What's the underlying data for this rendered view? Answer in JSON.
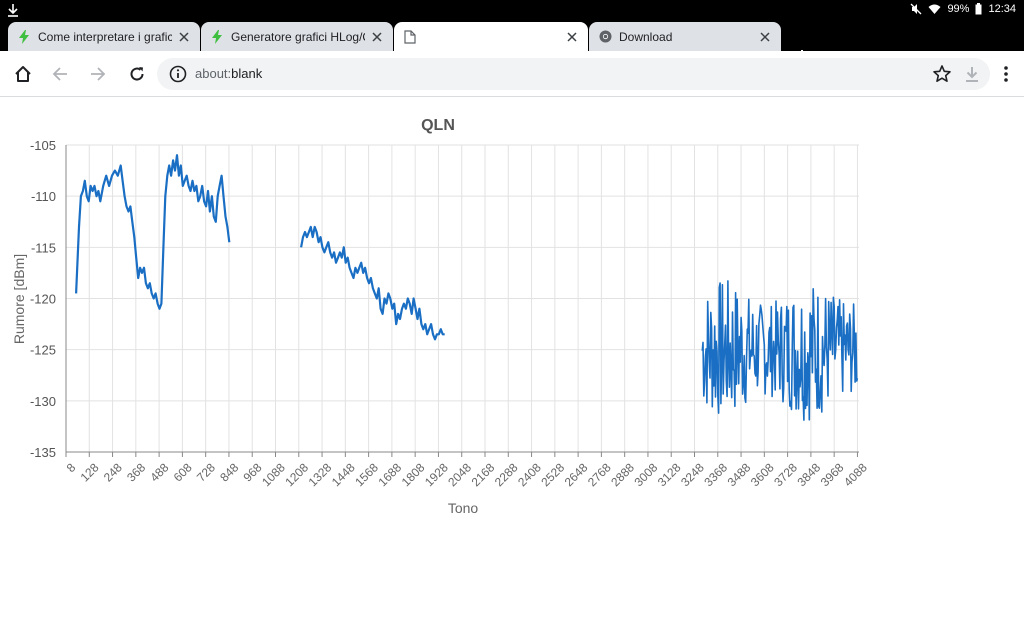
{
  "status_bar": {
    "battery": "99%",
    "time": "12:34"
  },
  "tabs": [
    {
      "title": "Come interpretare i grafici HLog/QLN",
      "favicon": "bolt-icon"
    },
    {
      "title": "Generatore grafici HLog/QLN",
      "favicon": "bolt-icon"
    },
    {
      "title": "",
      "favicon": "page-icon"
    },
    {
      "title": "Download",
      "favicon": "chrome-icon"
    }
  ],
  "toolbar": {
    "url_scheme": "about:",
    "url_path": "blank"
  },
  "colors": {
    "series": "#1a6fc4",
    "grid": "#e2e2e2",
    "tab_bg": "#dee1e6",
    "omnibox_bg": "#f1f3f4"
  },
  "chart_data": {
    "type": "line",
    "title": "QLN",
    "xlabel": "Tono",
    "ylabel": "Rumore [dBm]",
    "xlim": [
      8,
      4096
    ],
    "ylim": [
      -135,
      -105
    ],
    "x_ticks": [
      8,
      128,
      248,
      368,
      488,
      608,
      728,
      848,
      968,
      1088,
      1208,
      1328,
      1448,
      1568,
      1688,
      1808,
      1928,
      2048,
      2168,
      2288,
      2408,
      2528,
      2648,
      2768,
      2888,
      3008,
      3128,
      3248,
      3368,
      3488,
      3608,
      3728,
      3848,
      3968,
      4088
    ],
    "y_ticks": [
      -105,
      -110,
      -115,
      -120,
      -125,
      -130,
      -135
    ],
    "grid": true,
    "segments": [
      {
        "x": [
          60,
          75,
          85,
          95,
          105,
          115,
          125,
          135,
          145,
          155,
          165,
          175,
          185,
          200,
          215,
          230,
          245,
          260,
          275,
          290,
          300,
          310,
          320,
          330,
          340,
          350,
          360,
          370,
          380,
          390,
          400,
          410,
          420,
          430,
          440,
          450,
          460,
          470,
          480,
          490,
          500,
          510,
          520,
          530,
          540,
          550,
          560,
          570,
          580,
          590,
          600,
          610,
          620,
          630,
          640,
          650,
          660,
          670,
          680,
          690,
          700,
          710,
          720,
          730,
          740,
          750,
          760,
          770,
          780,
          790,
          800,
          810,
          820,
          830,
          840,
          850
        ],
        "y": [
          -119.5,
          -113,
          -110,
          -109.5,
          -108.5,
          -110,
          -110.5,
          -109,
          -109.5,
          -109,
          -110,
          -109.5,
          -110.5,
          -109,
          -108,
          -109,
          -108,
          -107.5,
          -108,
          -107,
          -108.5,
          -110,
          -111,
          -111.5,
          -111,
          -112.5,
          -114,
          -116,
          -118,
          -117,
          -117.5,
          -117,
          -118.5,
          -119,
          -118.5,
          -119.5,
          -120,
          -119.5,
          -120.5,
          -121,
          -120.5,
          -115,
          -110,
          -108,
          -107,
          -108,
          -106.5,
          -107.5,
          -106,
          -108,
          -107,
          -109,
          -108.5,
          -108,
          -109,
          -109.5,
          -108.5,
          -109.5,
          -109,
          -110.5,
          -110,
          -109,
          -110.5,
          -111,
          -109.5,
          -111.5,
          -110,
          -112,
          -112.5,
          -110,
          -109,
          -108,
          -110,
          -112,
          -113,
          -114.5
        ]
      },
      {
        "x": [
          1220,
          1230,
          1240,
          1250,
          1260,
          1270,
          1280,
          1290,
          1300,
          1310,
          1320,
          1330,
          1340,
          1350,
          1360,
          1370,
          1380,
          1390,
          1400,
          1410,
          1420,
          1430,
          1440,
          1450,
          1460,
          1470,
          1480,
          1490,
          1500,
          1510,
          1520,
          1530,
          1540,
          1550,
          1560,
          1570,
          1580,
          1590,
          1600,
          1610,
          1620,
          1630,
          1640,
          1650,
          1660,
          1670,
          1680,
          1690,
          1700,
          1710,
          1720,
          1730,
          1740,
          1750,
          1760,
          1770,
          1780,
          1790,
          1800,
          1810,
          1820,
          1830,
          1840,
          1850,
          1860,
          1870,
          1880,
          1890,
          1900,
          1910,
          1920,
          1930,
          1940,
          1950,
          1960
        ],
        "y": [
          -115,
          -114,
          -113.5,
          -114,
          -113.5,
          -113,
          -114,
          -113,
          -113.5,
          -114.5,
          -114,
          -115,
          -115.5,
          -115,
          -114.5,
          -115.5,
          -116,
          -115.5,
          -116.5,
          -116,
          -115.5,
          -116,
          -115,
          -116.5,
          -116,
          -117,
          -117.5,
          -118,
          -117,
          -117.5,
          -117,
          -116.5,
          -117.5,
          -117,
          -118,
          -118.5,
          -118,
          -119,
          -119.5,
          -120,
          -119,
          -121,
          -121.5,
          -120,
          -120.5,
          -119.5,
          -120,
          -121,
          -120.5,
          -122.5,
          -121.5,
          -122,
          -121,
          -120.5,
          -121,
          -120,
          -120.5,
          -121.5,
          -120,
          -121,
          -122,
          -121,
          -122.5,
          -123,
          -122.5,
          -123.5,
          -123,
          -122.5,
          -123.5,
          -124,
          -123.5,
          -123.5,
          -123,
          -123.5,
          -123.5
        ]
      },
      {
        "noisy": true,
        "x_start": 3288,
        "x_end": 4088,
        "y_center": -125,
        "y_min": -132.5,
        "y_max": -117
      }
    ]
  }
}
